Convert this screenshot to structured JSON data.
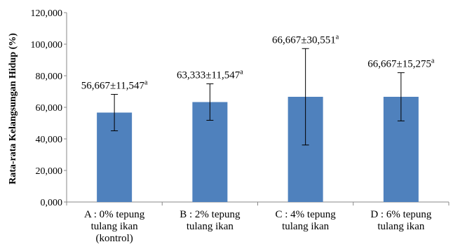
{
  "chart_data": {
    "type": "bar",
    "ylabel": "Rata-rata Kelangsungan Hidup (%)",
    "xlabel": "",
    "ylim": [
      0,
      120000
    ],
    "yticks": [
      0,
      20000,
      40000,
      60000,
      80000,
      100000,
      120000
    ],
    "ytick_labels": [
      "0,000",
      "20,000",
      "40,000",
      "60,000",
      "80,000",
      "100,000",
      "120,000"
    ],
    "categories": [
      [
        "A : 0% tepung",
        "tulang ikan",
        "(kontrol)"
      ],
      [
        "B : 2% tepung",
        "tulang ikan"
      ],
      [
        "C : 4% tepung",
        "tulang ikan"
      ],
      [
        "D : 6% tepung",
        "tulang ikan"
      ]
    ],
    "values": [
      56667,
      63333,
      66667,
      66667
    ],
    "errors": [
      11547,
      11547,
      30551,
      15275
    ],
    "data_labels": [
      "56,667±11,547",
      "63,333±11,547",
      "66,667±30,551",
      "66,667±15,275"
    ],
    "superscripts": [
      "a",
      "a",
      "a",
      "a"
    ],
    "bar_color": "#4f81bd",
    "grid": false,
    "legend": "none"
  }
}
